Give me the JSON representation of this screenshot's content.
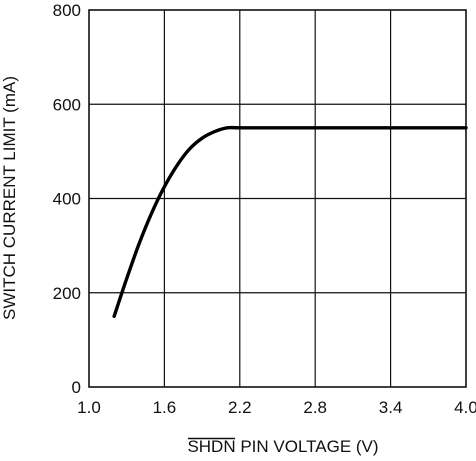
{
  "chart_data": {
    "type": "line",
    "xlabel": {
      "overlined": "SHDN",
      "rest": " PIN VOLTAGE (V)"
    },
    "ylabel": "SWITCH CURRENT LIMIT (mA)",
    "xlim": [
      1.0,
      4.0
    ],
    "ylim": [
      0,
      800
    ],
    "x_ticks": [
      1.0,
      1.6,
      2.2,
      2.8,
      3.4,
      4.0
    ],
    "x_tick_labels": [
      "1.0",
      "1.6",
      "2.2",
      "2.8",
      "3.4",
      "4.0"
    ],
    "y_ticks": [
      0,
      200,
      400,
      600,
      800
    ],
    "y_tick_labels": [
      "0",
      "200",
      "400",
      "600",
      "800"
    ],
    "grid": true,
    "series": [
      {
        "x": [
          1.2,
          1.3,
          1.4,
          1.5,
          1.6,
          1.7,
          1.8,
          1.9,
          2.0,
          2.1,
          2.2,
          2.5,
          3.0,
          3.5,
          4.0
        ],
        "y": [
          150,
          230,
          305,
          370,
          425,
          470,
          505,
          528,
          542,
          550,
          550,
          550,
          550,
          550,
          550
        ]
      }
    ]
  }
}
